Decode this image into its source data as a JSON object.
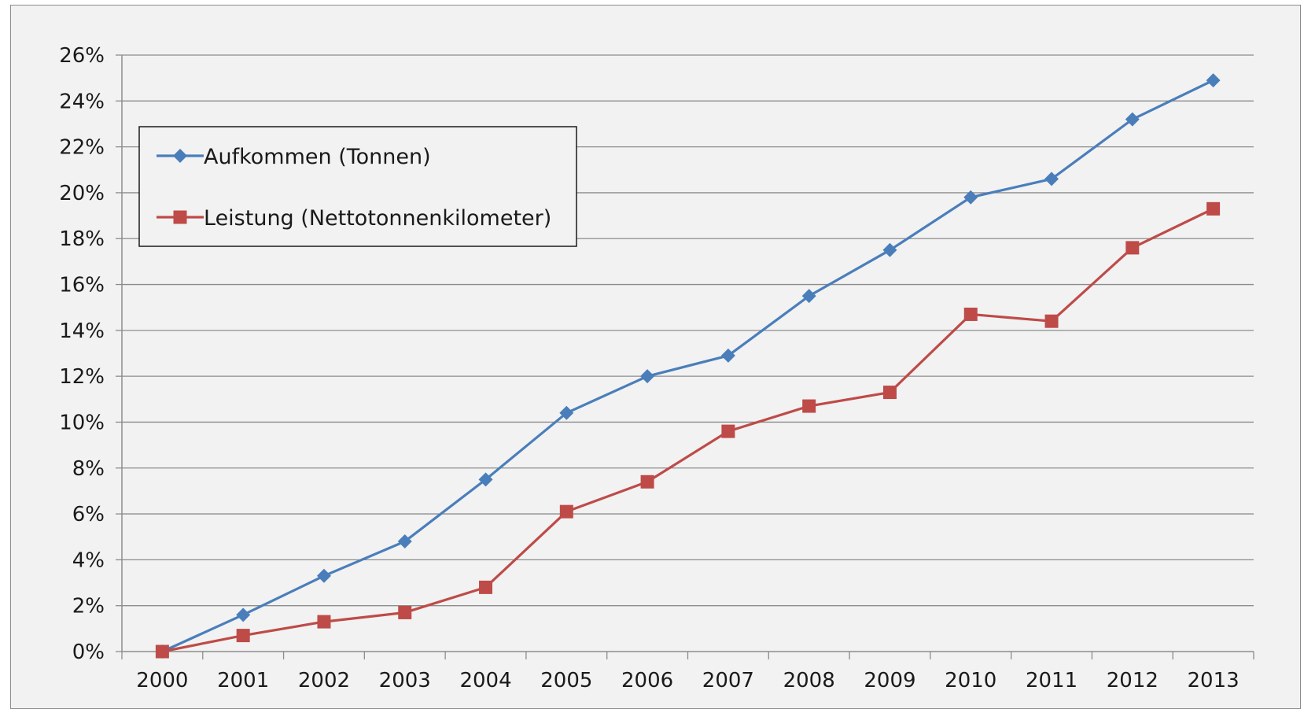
{
  "chart_data": {
    "type": "line",
    "title": "",
    "xlabel": "",
    "ylabel": "",
    "categories": [
      "2000",
      "2001",
      "2002",
      "2003",
      "2004",
      "2005",
      "2006",
      "2007",
      "2008",
      "2009",
      "2010",
      "2011",
      "2012",
      "2013"
    ],
    "y_ticks": [
      0,
      2,
      4,
      6,
      8,
      10,
      12,
      14,
      16,
      18,
      20,
      22,
      24,
      26
    ],
    "y_tick_labels": [
      "0%",
      "2%",
      "4%",
      "6%",
      "8%",
      "10%",
      "12%",
      "14%",
      "16%",
      "18%",
      "20%",
      "22%",
      "24%",
      "26%"
    ],
    "ylim": [
      0,
      26
    ],
    "grid": true,
    "legend_position": "top-left",
    "series": [
      {
        "name": "Aufkommen (Tonnen)",
        "marker": "diamond",
        "color": "#4a7ebb",
        "values": [
          0,
          1.6,
          3.3,
          4.8,
          7.5,
          10.4,
          12.0,
          12.9,
          15.5,
          17.5,
          19.8,
          20.6,
          23.2,
          24.9
        ]
      },
      {
        "name": "Leistung (Nettotonnenkilometer)",
        "marker": "square",
        "color": "#be4b48",
        "values": [
          0,
          0.7,
          1.3,
          1.7,
          2.8,
          6.1,
          7.4,
          9.6,
          10.7,
          11.3,
          14.7,
          14.4,
          17.6,
          19.3
        ]
      }
    ]
  }
}
